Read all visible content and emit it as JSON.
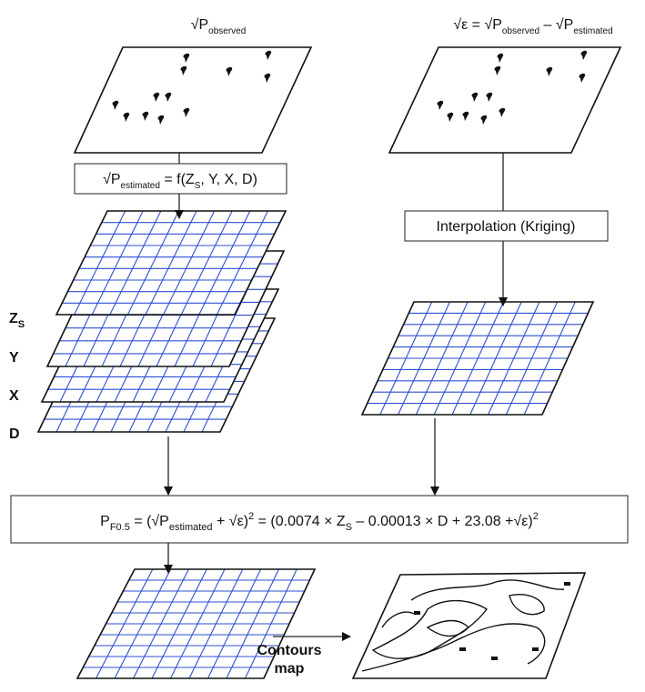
{
  "observed_label": [
    {
      "t": "√P"
    },
    {
      "sub": "observed"
    }
  ],
  "residual_label": [
    {
      "t": "√ε = √P"
    },
    {
      "sub": "observed"
    },
    {
      "t": " – √P"
    },
    {
      "sub": "estimated"
    }
  ],
  "regression_box": [
    {
      "t": "√P"
    },
    {
      "sub": "estimated"
    },
    {
      "t": " = f(Z"
    },
    {
      "sub": "S"
    },
    {
      "t": ", Y, X, D)"
    }
  ],
  "interpolation_box": "Interpolation (Kriging)",
  "layers": [
    [
      {
        "t": "Z"
      },
      {
        "sub": "S"
      }
    ],
    [
      {
        "t": "Y"
      }
    ],
    [
      {
        "t": "X"
      }
    ],
    [
      {
        "t": "D"
      }
    ]
  ],
  "formula": [
    {
      "t": "P"
    },
    {
      "sub": "F0.5"
    },
    {
      "t": " = (√P"
    },
    {
      "sub": "estimated"
    },
    {
      "t": " + √ε)"
    },
    {
      "sup": "2"
    },
    {
      "t": " = (0.0074 × Z"
    },
    {
      "sub": "S"
    },
    {
      "t": " – 0.00013 × D + 23.08 +√ε)"
    },
    {
      "sup": "2"
    }
  ],
  "contours_label": [
    "Contours",
    "map"
  ]
}
